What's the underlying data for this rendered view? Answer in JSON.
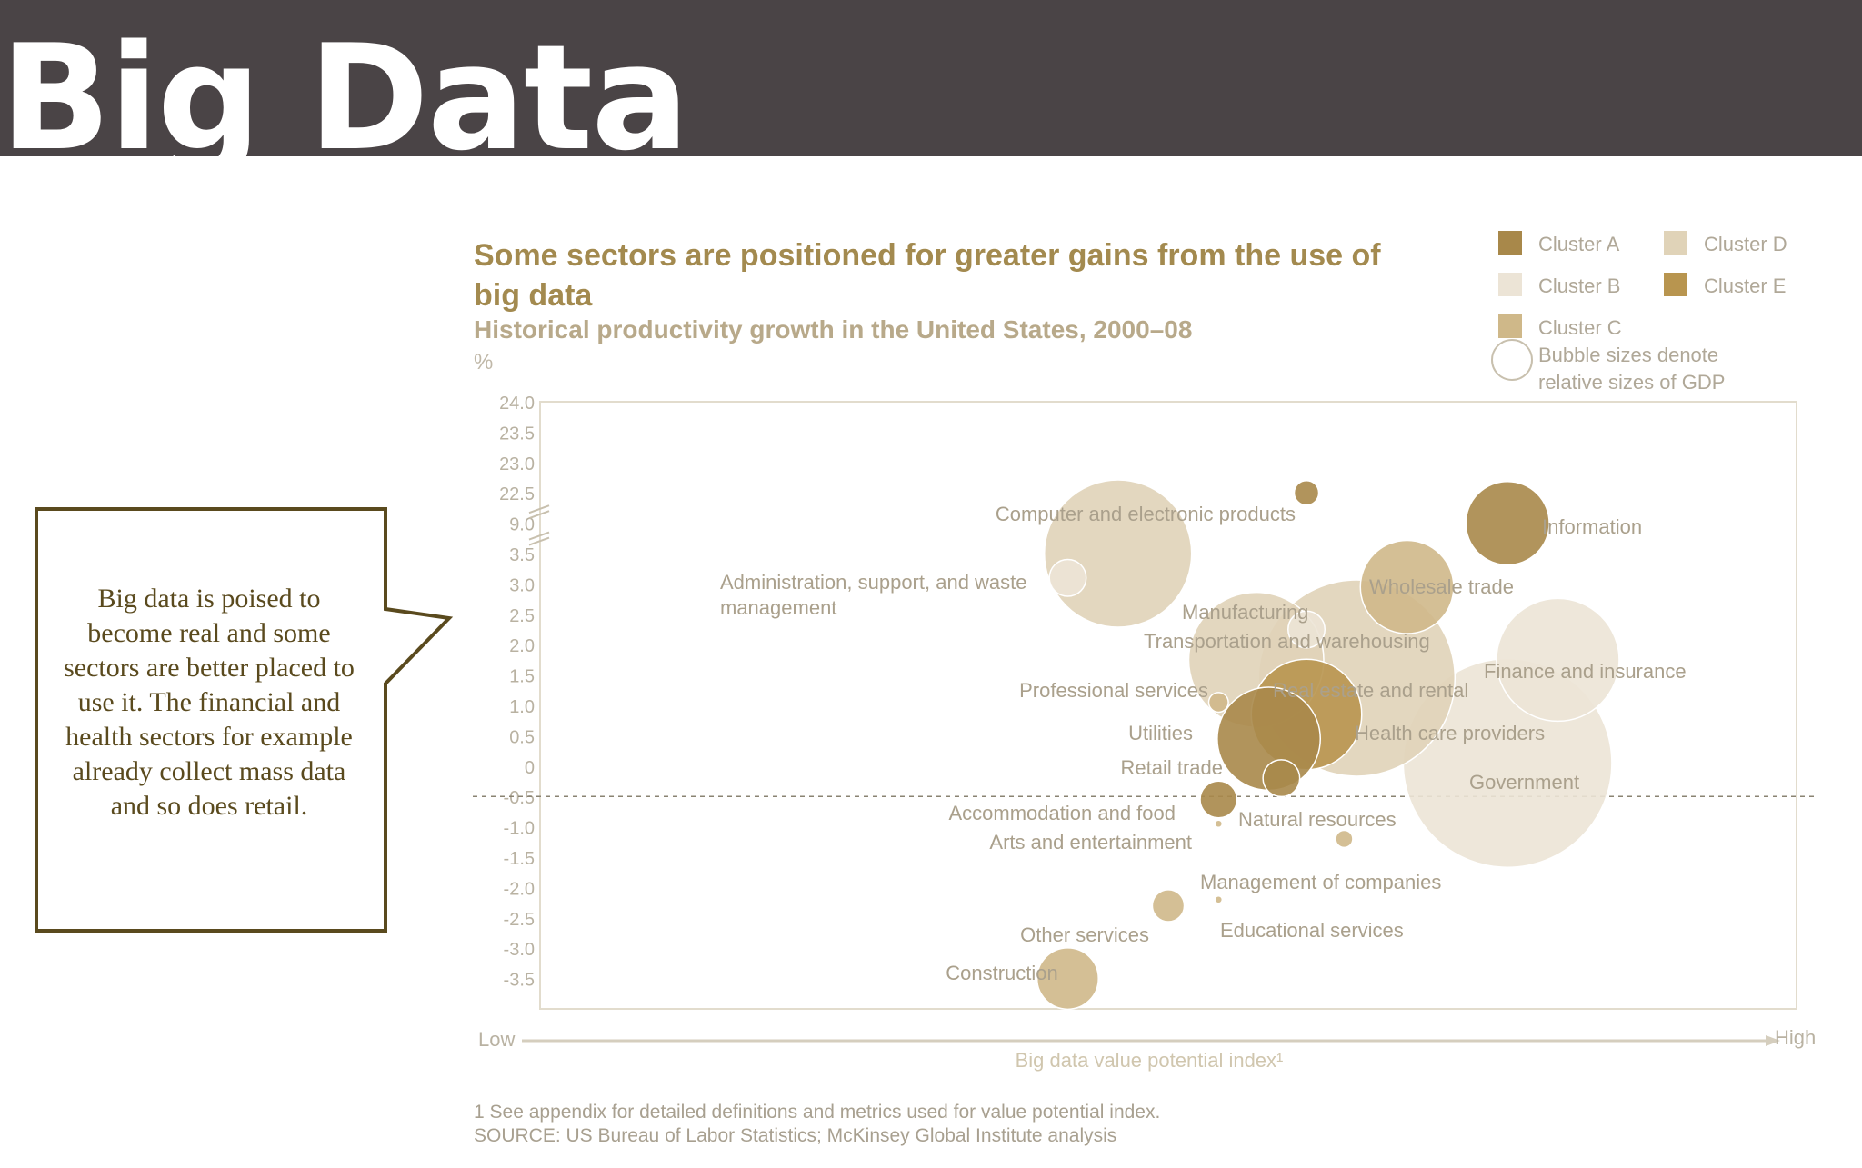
{
  "header": {
    "title": "Big Data"
  },
  "callout": {
    "text": "Big data is poised to become real and some sectors are better placed to use it. The financial and health sectors for example already collect mass data and so does retail."
  },
  "colors": {
    "header_bg": "#4a4446",
    "title_color": "#a38a4f",
    "subtitle_color": "#b8a98a",
    "cluster_a": "#a8884a",
    "cluster_b": "#ece4d6",
    "cluster_c": "#cfb889",
    "cluster_d": "#e0d3b8",
    "cluster_e": "#b8954f"
  },
  "chart_data": {
    "type": "scatter",
    "title": "Some sectors are positioned for greater gains from the use of big data",
    "subtitle": "Historical productivity growth in the United States, 2000–08",
    "ylabel": "%",
    "xlabel": "Big data value potential index¹",
    "x_low_label": "Low",
    "x_high_label": "High",
    "y_ticks": [
      "24.0",
      "23.5",
      "23.0",
      "22.5",
      "9.0",
      "3.5",
      "3.0",
      "2.5",
      "2.0",
      "1.5",
      "1.0",
      "0.5",
      "0",
      "-0.5",
      "-1.0",
      "-1.5",
      "-2.0",
      "-2.5",
      "-3.0",
      "-3.5"
    ],
    "ylim": [
      -3.5,
      24.0
    ],
    "xlim": [
      0,
      1
    ],
    "axis_break": true,
    "reference_line_y": -0.5,
    "legend": {
      "placement": "top-right",
      "clusters": [
        {
          "name": "Cluster A",
          "color": "#a8884a"
        },
        {
          "name": "Cluster B",
          "color": "#ece4d6"
        },
        {
          "name": "Cluster C",
          "color": "#cfb889"
        },
        {
          "name": "Cluster D",
          "color": "#e0d3b8"
        },
        {
          "name": "Cluster E",
          "color": "#b8954f"
        }
      ],
      "bubble_note": "Bubble sizes denote relative sizes of GDP"
    },
    "points": [
      {
        "label": "Computer and electronic products",
        "x": 0.61,
        "y": 22.5,
        "size": 1.0,
        "cluster": "A"
      },
      {
        "label": "Information",
        "x": 0.77,
        "y": 9.0,
        "size": 3.4,
        "cluster": "A"
      },
      {
        "label": "Administration, support, and waste management",
        "x": 0.46,
        "y": 3.5,
        "size": 6.0,
        "cluster": "D"
      },
      {
        "label": "Manufacturing",
        "x": 0.42,
        "y": 3.1,
        "size": 1.5,
        "cluster": "B"
      },
      {
        "label": "Wholesale trade",
        "x": 0.69,
        "y": 2.95,
        "size": 3.8,
        "cluster": "C"
      },
      {
        "label": "Transportation and warehousing",
        "x": 0.61,
        "y": 2.25,
        "size": 1.5,
        "cluster": "B"
      },
      {
        "label": "Professional services",
        "x": 0.57,
        "y": 1.75,
        "size": 5.5,
        "cluster": "D"
      },
      {
        "label": "Real estate and rental",
        "x": 0.65,
        "y": 1.45,
        "size": 8.0,
        "cluster": "D"
      },
      {
        "label": "Finance and insurance",
        "x": 0.81,
        "y": 1.75,
        "size": 5.0,
        "cluster": "B"
      },
      {
        "label": "Utilities",
        "x": 0.54,
        "y": 1.05,
        "size": 0.8,
        "cluster": "C"
      },
      {
        "label": "Health care providers",
        "x": 0.61,
        "y": 0.85,
        "size": 4.5,
        "cluster": "E"
      },
      {
        "label": "Retail trade",
        "x": 0.58,
        "y": 0.45,
        "size": 4.2,
        "cluster": "A"
      },
      {
        "label": "Government",
        "x": 0.77,
        "y": 0.05,
        "size": 8.5,
        "cluster": "B"
      },
      {
        "label": "Natural resources",
        "x": 0.59,
        "y": -0.2,
        "size": 1.5,
        "cluster": "A"
      },
      {
        "label": "Accommodation and food",
        "x": 0.54,
        "y": -0.55,
        "size": 1.5,
        "cluster": "A"
      },
      {
        "label": "Arts and entertainment",
        "x": 0.54,
        "y": -0.95,
        "size": 0.3,
        "cluster": "C"
      },
      {
        "label": "Management of companies",
        "x": 0.64,
        "y": -1.2,
        "size": 0.7,
        "cluster": "C"
      },
      {
        "label": "Other services",
        "x": 0.5,
        "y": -2.3,
        "size": 1.3,
        "cluster": "C"
      },
      {
        "label": "Educational services",
        "x": 0.54,
        "y": -2.2,
        "size": 0.3,
        "cluster": "C"
      },
      {
        "label": "Construction",
        "x": 0.42,
        "y": -3.5,
        "size": 2.5,
        "cluster": "C"
      }
    ],
    "footnote": "1  See appendix for detailed definitions and metrics used for value potential index.",
    "source": "SOURCE:  US Bureau of Labor Statistics; McKinsey Global Institute analysis"
  }
}
